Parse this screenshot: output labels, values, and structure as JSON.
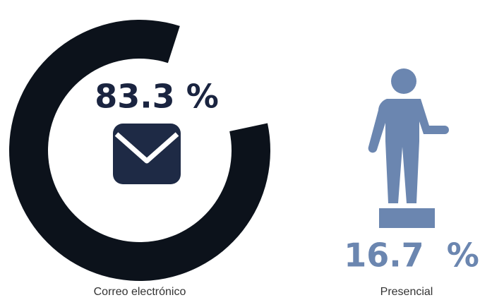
{
  "chart_data": {
    "type": "donut",
    "categories": [
      "Correo electrónico",
      "Presencial"
    ],
    "values": [
      83.3,
      16.7
    ],
    "value_labels": [
      "83.3 %",
      "16.7  %"
    ],
    "colors": [
      "#0c121b",
      "#6b86b0"
    ]
  }
}
